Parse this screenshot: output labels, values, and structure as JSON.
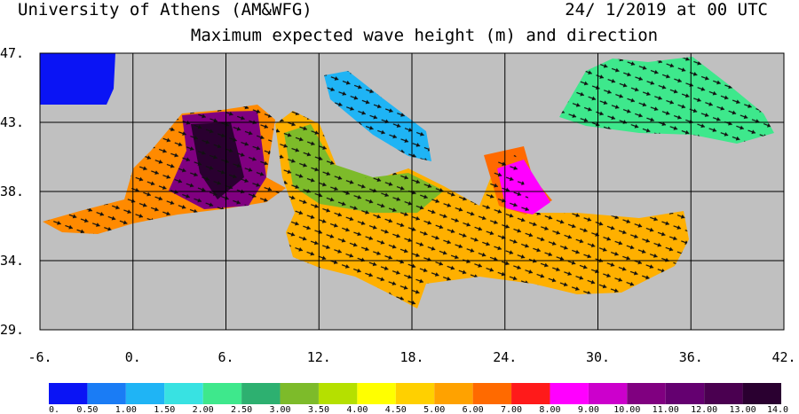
{
  "header": {
    "left": "University of Athens (AM&WFG)",
    "right": "24/ 1/2019 at 00 UTC"
  },
  "title": "Maximum expected wave height (m) and direction",
  "map": {
    "xlim": [
      -6,
      42
    ],
    "xticks": [
      {
        "value": -6,
        "label": "-6."
      },
      {
        "value": 0,
        "label": "0."
      },
      {
        "value": 6,
        "label": "6."
      },
      {
        "value": 12,
        "label": "12."
      },
      {
        "value": 18,
        "label": "18."
      },
      {
        "value": 24,
        "label": "24."
      },
      {
        "value": 30,
        "label": "30."
      },
      {
        "value": 36,
        "label": "36."
      },
      {
        "value": 42,
        "label": "42."
      }
    ],
    "ylim": [
      29,
      47
    ],
    "yticks": [
      {
        "value": 29,
        "label": "29."
      },
      {
        "value": 33.5,
        "label": "34."
      },
      {
        "value": 38,
        "label": "38."
      },
      {
        "value": 42.5,
        "label": "43."
      },
      {
        "value": 47,
        "label": "47."
      }
    ],
    "grid": true
  },
  "colorbar": {
    "colors": [
      "#0a14f5",
      "#1a7cf5",
      "#1fb4f5",
      "#38e2e2",
      "#3ee88c",
      "#2db070",
      "#7dbb2a",
      "#b5e000",
      "#ffff00",
      "#ffd000",
      "#ffa200",
      "#ff6a00",
      "#ff1a1a",
      "#ff00ff",
      "#cc00cc",
      "#800080",
      "#640070",
      "#4a0050",
      "#2a0030"
    ],
    "ticks": [
      {
        "value": 0,
        "label": "0."
      },
      {
        "value": 0.5,
        "label": "0.50"
      },
      {
        "value": 1,
        "label": "1.00"
      },
      {
        "value": 1.5,
        "label": "1.50"
      },
      {
        "value": 2,
        "label": "2.00"
      },
      {
        "value": 2.5,
        "label": "2.50"
      },
      {
        "value": 3,
        "label": "3.00"
      },
      {
        "value": 3.5,
        "label": "3.50"
      },
      {
        "value": 4,
        "label": "4.00"
      },
      {
        "value": 4.5,
        "label": "4.50"
      },
      {
        "value": 5,
        "label": "5.00"
      },
      {
        "value": 6,
        "label": "6.00"
      },
      {
        "value": 7,
        "label": "7.00"
      },
      {
        "value": 8,
        "label": "8.00"
      },
      {
        "value": 9,
        "label": "9.00"
      },
      {
        "value": 10,
        "label": "10.00"
      },
      {
        "value": 11,
        "label": "11.00"
      },
      {
        "value": 12,
        "label": "12.00"
      },
      {
        "value": 13,
        "label": "13.00"
      },
      {
        "value": 14,
        "label": "14.0"
      }
    ]
  }
}
